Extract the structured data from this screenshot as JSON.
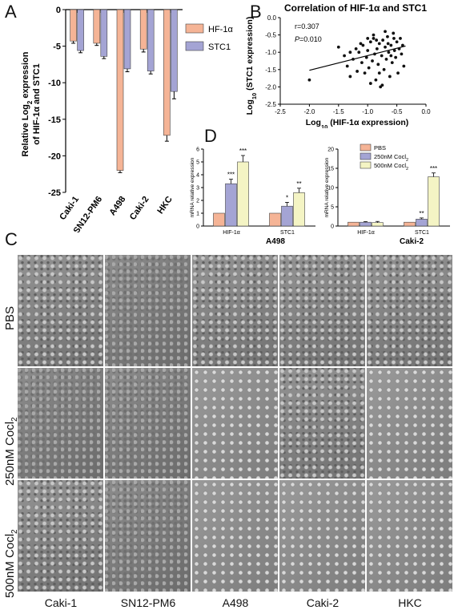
{
  "panels": {
    "a": "A",
    "b": "B",
    "c": "C",
    "d": "D"
  },
  "chart_data": [
    {
      "id": "A",
      "type": "bar",
      "ylabel_line1": "Relative Log",
      "ylabel_sub": "2",
      "ylabel_line1_tail": " expression",
      "ylabel_line2": "of HIF-1α  and STC1",
      "categories": [
        "Caki-1",
        "SN12-PM6",
        "A498",
        "Caki-2",
        "HKC"
      ],
      "series": [
        {
          "name": "HF-1α",
          "values": [
            -4.3,
            -4.6,
            -22.0,
            -5.4,
            -17.2
          ],
          "errors": [
            0.3,
            0.3,
            0.3,
            0.4,
            0.8
          ],
          "color": "#f5b496"
        },
        {
          "name": "STC1",
          "values": [
            -5.6,
            -6.4,
            -8.1,
            -8.4,
            -11.2
          ],
          "errors": [
            0.3,
            0.3,
            0.4,
            0.4,
            1.0
          ],
          "color": "#a4a4d4"
        }
      ],
      "ylim": [
        -25,
        0
      ],
      "yticks": [
        "0",
        "-5",
        "-10",
        "-15",
        "-20",
        "-25"
      ]
    },
    {
      "id": "B",
      "type": "scatter",
      "title": "Correlation of HIF-1α  and STC1",
      "annotation_r": "r=0.307",
      "annotation_p_label": "P",
      "annotation_p_value": "=0.010",
      "xlabel_pre": "Log",
      "xlabel_sub": "10",
      "xlabel_post": " (HIF-1α  expression)",
      "ylabel_pre": "Log",
      "ylabel_sub": "10",
      "ylabel_post": " (STC1 expression)",
      "xlim": [
        -2.5,
        0.0
      ],
      "ylim": [
        -2.5,
        0.0
      ],
      "xticks": [
        "-2.5",
        "-2.0",
        "-1.5",
        "-1.0",
        "-0.5",
        "0.0"
      ],
      "yticks": [
        "0.0",
        "-0.5",
        "-1.0",
        "-1.5",
        "-2.0",
        "-2.5"
      ],
      "fit": {
        "x": [
          -2.0,
          -0.35
        ],
        "y": [
          -1.52,
          -0.82
        ]
      },
      "points": [
        [
          -2.0,
          -1.8
        ],
        [
          -1.5,
          -0.85
        ],
        [
          -1.4,
          -1.1
        ],
        [
          -1.35,
          -1.4
        ],
        [
          -1.3,
          -1.7
        ],
        [
          -1.25,
          -1.2
        ],
        [
          -1.2,
          -0.9
        ],
        [
          -1.18,
          -1.55
        ],
        [
          -1.15,
          -1.0
        ],
        [
          -1.1,
          -1.3
        ],
        [
          -1.08,
          -0.8
        ],
        [
          -1.05,
          -1.6
        ],
        [
          -1.02,
          -1.15
        ],
        [
          -1.0,
          -0.95
        ],
        [
          -0.98,
          -1.45
        ],
        [
          -0.95,
          -0.7
        ],
        [
          -0.92,
          -1.25
        ],
        [
          -0.9,
          -0.6
        ],
        [
          -0.88,
          -1.05
        ],
        [
          -0.86,
          -1.8
        ],
        [
          -0.84,
          -0.9
        ],
        [
          -0.82,
          -1.35
        ],
        [
          -0.8,
          -0.75
        ],
        [
          -0.78,
          -2.0
        ],
        [
          -0.76,
          -1.1
        ],
        [
          -0.74,
          -0.65
        ],
        [
          -0.72,
          -1.5
        ],
        [
          -0.7,
          -0.85
        ],
        [
          -0.68,
          -1.2
        ],
        [
          -0.66,
          -0.55
        ],
        [
          -0.64,
          -1.0
        ],
        [
          -0.62,
          -1.7
        ],
        [
          -0.6,
          -0.8
        ],
        [
          -0.58,
          -1.3
        ],
        [
          -0.56,
          -0.45
        ],
        [
          -0.54,
          -0.95
        ],
        [
          -0.52,
          -1.15
        ],
        [
          -0.5,
          -0.7
        ],
        [
          -0.48,
          -1.6
        ],
        [
          -0.46,
          -0.9
        ],
        [
          -0.44,
          -0.6
        ],
        [
          -0.42,
          -1.05
        ],
        [
          -0.4,
          -0.8
        ],
        [
          -0.38,
          -1.4
        ],
        [
          -0.9,
          -0.5
        ],
        [
          -1.0,
          -0.6
        ],
        [
          -0.7,
          -0.4
        ],
        [
          -0.65,
          -0.75
        ],
        [
          -1.12,
          -0.75
        ],
        [
          -0.95,
          -1.9
        ],
        [
          -0.75,
          -1.95
        ],
        [
          -0.85,
          -0.65
        ],
        [
          -0.6,
          -1.1
        ],
        [
          -0.55,
          -0.6
        ],
        [
          -1.3,
          -1.0
        ],
        [
          -0.8,
          -1.6
        ]
      ]
    },
    {
      "id": "D-A498",
      "type": "bar",
      "title": "A498",
      "ylabel": "mRNA relative expression",
      "categories": [
        "HIF-1α",
        "STC1"
      ],
      "series": [
        {
          "name": "PBS",
          "values": [
            1.0,
            1.0
          ],
          "errors": [
            0,
            0
          ],
          "color": "#f5b496"
        },
        {
          "name": "250nM Cocl2",
          "values": [
            3.3,
            1.55
          ],
          "errors": [
            0.35,
            0.3
          ],
          "color": "#a4a4d4"
        },
        {
          "name": "500nM Cocl2",
          "values": [
            5.0,
            2.6
          ],
          "errors": [
            0.5,
            0.35
          ],
          "color": "#f4f4c4"
        }
      ],
      "significance": [
        [
          "",
          "***",
          "***"
        ],
        [
          "",
          "*",
          "**"
        ]
      ],
      "ylim": [
        0,
        6
      ],
      "yticks": [
        "0",
        "1",
        "2",
        "3",
        "4",
        "5",
        "6"
      ]
    },
    {
      "id": "D-Caki2",
      "type": "bar",
      "title": "Caki-2",
      "ylabel": "mRNA relative expression",
      "categories": [
        "HIF-1α",
        "STC1"
      ],
      "series": [
        {
          "name": "PBS",
          "values": [
            1.0,
            1.0
          ],
          "errors": [
            0,
            0
          ],
          "color": "#f5b496"
        },
        {
          "name": "250nM Cocl2",
          "values": [
            1.0,
            1.8
          ],
          "errors": [
            0.15,
            0.3
          ],
          "color": "#a4a4d4"
        },
        {
          "name": "500nM Cocl2",
          "values": [
            0.9,
            12.8
          ],
          "errors": [
            0.3,
            1.0
          ],
          "color": "#f4f4c4"
        }
      ],
      "significance": [
        [
          "",
          "",
          ""
        ],
        [
          "",
          "**",
          "***"
        ]
      ],
      "ylim": [
        0,
        20
      ],
      "yticks": [
        "0",
        "5",
        "10",
        "15",
        "20"
      ]
    }
  ],
  "legend_d": [
    {
      "label": "PBS",
      "sub": "",
      "color": "#f5b496"
    },
    {
      "label": "250nM Cocl",
      "sub": "2",
      "color": "#a4a4d4"
    },
    {
      "label": "500nM Cocl",
      "sub": "2",
      "color": "#f4f4c4"
    }
  ],
  "micrograph": {
    "rows": [
      {
        "label": "PBS",
        "sub": ""
      },
      {
        "label": "250nM Cocl",
        "sub": "2"
      },
      {
        "label": "500nM Cocl",
        "sub": "2"
      }
    ],
    "columns": [
      "Caki-1",
      "SN12-PM6",
      "A498",
      "Caki-2",
      "HKC"
    ],
    "textures": [
      [
        "mid",
        "dense",
        "mid",
        "mid",
        "mid"
      ],
      [
        "dense",
        "dense",
        "round",
        "mid",
        "round"
      ],
      [
        "mid",
        "dense",
        "round",
        "round",
        "round"
      ]
    ]
  }
}
